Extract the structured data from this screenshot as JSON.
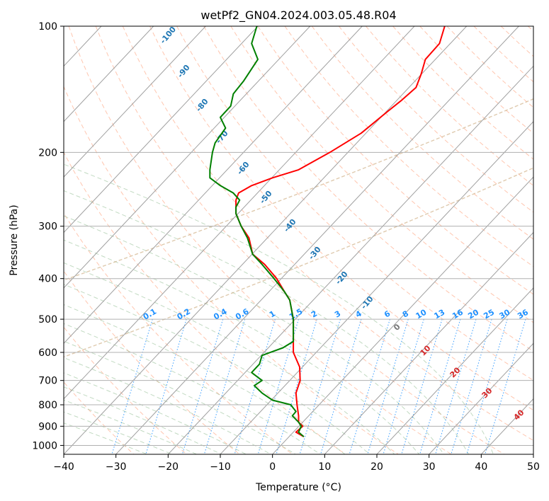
{
  "chart_data": {
    "type": "line",
    "title": "wetPf2_GN04.2024.003.05.48.R04",
    "xlabel": "Temperature (°C)",
    "ylabel": "Pressure (hPa)",
    "xlim": [
      -40,
      50
    ],
    "ylim": [
      1050,
      100
    ],
    "y_scale": "log",
    "grid": true,
    "x_ticks": [
      "−40",
      "−30",
      "−20",
      "−10",
      "0",
      "10",
      "20",
      "30",
      "40",
      "50"
    ],
    "y_ticks": [
      "100",
      "200",
      "300",
      "400",
      "500",
      "600",
      "700",
      "800",
      "900",
      "1000"
    ],
    "x_tick_values": [
      -40,
      -30,
      -20,
      -10,
      0,
      10,
      20,
      30,
      40,
      50
    ],
    "y_tick_values": [
      100,
      200,
      300,
      400,
      500,
      600,
      700,
      800,
      900,
      1000
    ],
    "series": [
      {
        "color": "#ff0000",
        "pressure": [
          953,
          930,
          900,
          880,
          850,
          800,
          750,
          700,
          650,
          600,
          560,
          500,
          450,
          430,
          400,
          370,
          350,
          320,
          300,
          280,
          260,
          250,
          240,
          230,
          220,
          200,
          180,
          160,
          150,
          140,
          130,
          120,
          110,
          100
        ],
        "x_pos": [
          6.0,
          4.5,
          5.8,
          5.0,
          5.0,
          4.7,
          4.5,
          5.3,
          5.2,
          4.0,
          4.0,
          4.0,
          3.3,
          2.3,
          0.8,
          -1.5,
          -3.8,
          -4.5,
          -6.0,
          -7.0,
          -7.0,
          -6.5,
          -4.0,
          0.0,
          5.0,
          11.0,
          17.0,
          22.0,
          24.8,
          27.5,
          28.5,
          29.3,
          32.0,
          33.0
        ]
      },
      {
        "color": "#008000",
        "pressure": [
          953,
          930,
          900,
          880,
          850,
          830,
          800,
          780,
          750,
          720,
          700,
          670,
          640,
          610,
          585,
          565,
          500,
          450,
          430,
          400,
          370,
          350,
          320,
          300,
          280,
          270,
          260,
          250,
          240,
          230,
          220,
          200,
          190,
          175,
          165,
          155,
          145,
          135,
          120,
          110,
          100
        ],
        "x_pos": [
          6.0,
          5.0,
          5.5,
          5.0,
          3.8,
          4.5,
          3.5,
          0.0,
          -2.0,
          -3.5,
          -2.0,
          -4.0,
          -2.5,
          -2.0,
          2.0,
          4.0,
          4.0,
          3.3,
          2.3,
          0.3,
          -2.0,
          -3.8,
          -4.8,
          -6.0,
          -7.0,
          -7.0,
          -6.3,
          -7.5,
          -10.0,
          -12.0,
          -12.0,
          -11.5,
          -11.0,
          -9.0,
          -10.0,
          -8.0,
          -7.5,
          -5.5,
          -2.8,
          -4.0,
          -3.0
        ]
      }
    ],
    "dry_adiabat_labels": [
      "-100",
      "-90",
      "-80",
      "-70",
      "-60",
      "-50",
      "-40",
      "-30",
      "-20",
      "-10"
    ],
    "mixing_ratio_labels": [
      "0.1",
      "0.2",
      "0.4",
      "0.6",
      "1",
      "1.5",
      "2",
      "3",
      "4",
      "6",
      "8",
      "10",
      "13",
      "16",
      "20",
      "25",
      "30",
      "36"
    ],
    "moist_adiabat_labels": [
      "0",
      "10",
      "20",
      "30",
      "40"
    ]
  }
}
